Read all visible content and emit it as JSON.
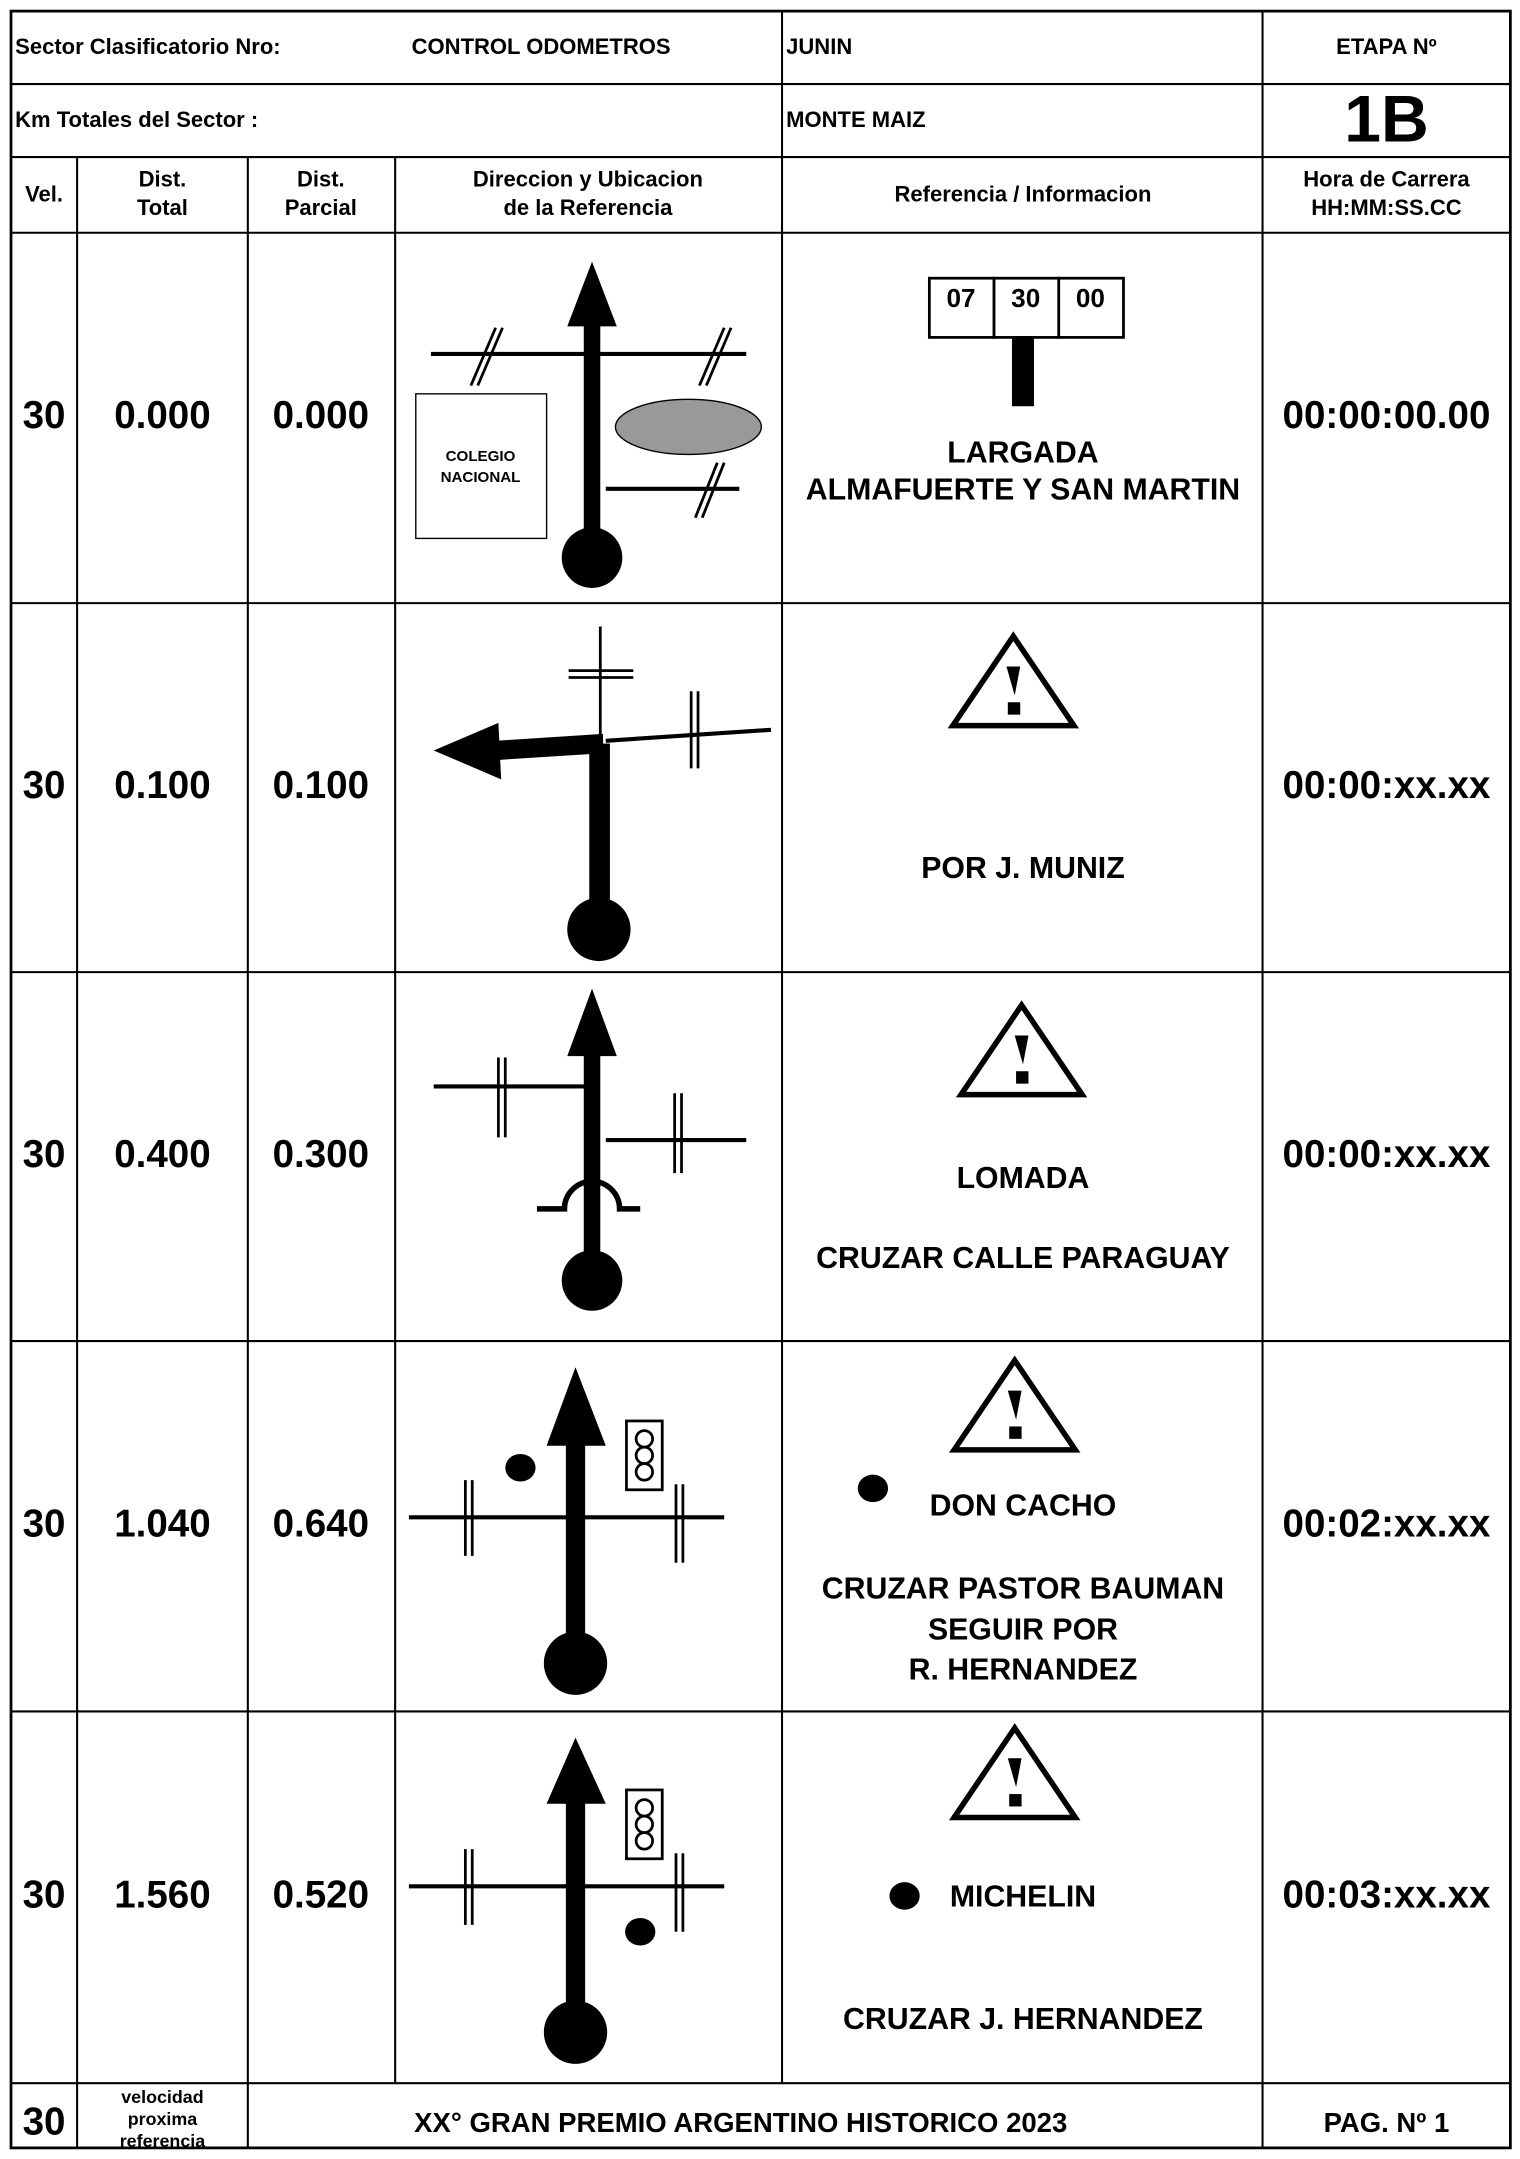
{
  "header": {
    "sector_label": "Sector Clasificatorio Nro:",
    "sector_name": "CONTROL ODOMETROS",
    "origin": "JUNIN",
    "etapa_label": "ETAPA Nº",
    "km_label": "Km Totales del Sector :",
    "destination": "MONTE MAIZ",
    "etapa": "1B"
  },
  "columns": [
    [
      "Vel."
    ],
    [
      "Dist.",
      "Total"
    ],
    [
      "Dist.",
      "Parcial"
    ],
    [
      "Direccion y Ubicacion",
      "de la Referencia"
    ],
    [
      "Referencia / Informacion"
    ],
    [
      "Hora de Carrera",
      "HH:MM:SS.CC"
    ]
  ],
  "rows": [
    {
      "vel": "30",
      "dist_total": "0.000",
      "dist_parcial": "0.000",
      "time": "00:00:00.00",
      "diagram_labels": [
        "COLEGIO",
        "NACIONAL"
      ],
      "start_time": [
        "07",
        "30",
        "00"
      ],
      "reference": [
        "LARGADA",
        "ALMAFUERTE Y SAN MARTIN"
      ]
    },
    {
      "vel": "30",
      "dist_total": "0.100",
      "dist_parcial": "0.100",
      "time": "00:00:xx.xx",
      "reference": [
        "POR J. MUNIZ"
      ]
    },
    {
      "vel": "30",
      "dist_total": "0.400",
      "dist_parcial": "0.300",
      "time": "00:00:xx.xx",
      "reference": [
        "LOMADA",
        "CRUZAR CALLE PARAGUAY"
      ]
    },
    {
      "vel": "30",
      "dist_total": "1.040",
      "dist_parcial": "0.640",
      "time": "00:02:xx.xx",
      "reference": [
        "DON CACHO",
        "CRUZAR PASTOR BAUMAN",
        "SEGUIR POR",
        "R. HERNANDEZ"
      ]
    },
    {
      "vel": "30",
      "dist_total": "1.560",
      "dist_parcial": "0.520",
      "time": "00:03:xx.xx",
      "reference": [
        "MICHELIN",
        "CRUZAR J. HERNANDEZ"
      ]
    }
  ],
  "footer": {
    "vel": "30",
    "note": [
      "velocidad",
      "proxima",
      "referencia"
    ],
    "title": "XX° GRAN PREMIO ARGENTINO HISTORICO 2023",
    "page": "PAG. Nº 1"
  }
}
